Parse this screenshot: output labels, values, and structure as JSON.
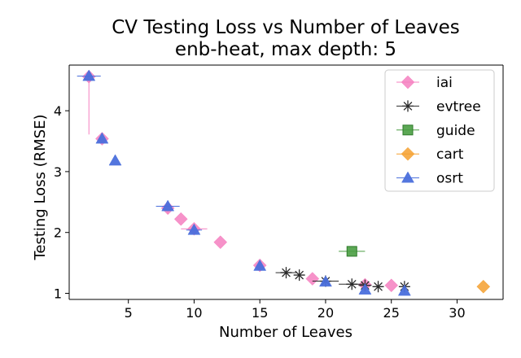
{
  "chart_data": {
    "type": "scatter",
    "title": "CV Testing Loss vs Number of Leaves",
    "subtitle": "enb-heat, max depth: 5",
    "xlabel": "Number of Leaves",
    "ylabel": "Testing Loss (RMSE)",
    "xlim": [
      0.5,
      33.5
    ],
    "ylim": [
      0.9,
      4.75
    ],
    "xticks": [
      5,
      10,
      15,
      20,
      25,
      30
    ],
    "yticks": [
      1,
      2,
      3,
      4
    ],
    "grid": false,
    "legend_position": "top-right",
    "series": [
      {
        "name": "iai",
        "color": "#f57fbf",
        "marker": "diamond",
        "points": [
          {
            "x": 2,
            "y": 4.56,
            "xerr": 0,
            "yerr_low": 0.95,
            "yerr_high": 0
          },
          {
            "x": 3,
            "y": 3.54,
            "xerr": 0,
            "yerr_low": 0,
            "yerr_high": 0
          },
          {
            "x": 8,
            "y": 2.4,
            "xerr": 0.4,
            "yerr_low": 0.1,
            "yerr_high": 0.1
          },
          {
            "x": 9,
            "y": 2.22,
            "xerr": 0,
            "yerr_low": 0,
            "yerr_high": 0
          },
          {
            "x": 10,
            "y": 2.06,
            "xerr": 1,
            "yerr_low": 0,
            "yerr_high": 0
          },
          {
            "x": 12,
            "y": 1.84,
            "xerr": 0,
            "yerr_low": 0,
            "yerr_high": 0
          },
          {
            "x": 15,
            "y": 1.46,
            "xerr": 0,
            "yerr_low": 0,
            "yerr_high": 0
          },
          {
            "x": 19,
            "y": 1.24,
            "xerr": 0,
            "yerr_low": 0,
            "yerr_high": 0
          },
          {
            "x": 23,
            "y": 1.14,
            "xerr": 0,
            "yerr_low": 0,
            "yerr_high": 0
          },
          {
            "x": 25,
            "y": 1.13,
            "xerr": 0,
            "yerr_low": 0,
            "yerr_high": 0
          }
        ]
      },
      {
        "name": "evtree",
        "color": "#2b2b2b",
        "marker": "star",
        "points": [
          {
            "x": 17,
            "y": 1.34,
            "xerr": 0.8,
            "yerr_low": 0,
            "yerr_high": 0
          },
          {
            "x": 18,
            "y": 1.3,
            "xerr": 0,
            "yerr_low": 0,
            "yerr_high": 0
          },
          {
            "x": 20,
            "y": 1.2,
            "xerr": 1,
            "yerr_low": 0,
            "yerr_high": 0
          },
          {
            "x": 22,
            "y": 1.15,
            "xerr": 1,
            "yerr_low": 0,
            "yerr_high": 0
          },
          {
            "x": 23,
            "y": 1.13,
            "xerr": 0.5,
            "yerr_low": 0,
            "yerr_high": 0
          },
          {
            "x": 24,
            "y": 1.11,
            "xerr": 0,
            "yerr_low": 0,
            "yerr_high": 0
          },
          {
            "x": 26,
            "y": 1.11,
            "xerr": 0,
            "yerr_low": 0,
            "yerr_high": 0
          }
        ]
      },
      {
        "name": "guide",
        "color": "#4a9e42",
        "marker": "square",
        "points": [
          {
            "x": 22,
            "y": 1.69,
            "xerr": 1,
            "yerr_low": 0,
            "yerr_high": 0
          }
        ]
      },
      {
        "name": "cart",
        "color": "#f5a02f",
        "marker": "diamond",
        "points": [
          {
            "x": 32,
            "y": 1.11,
            "xerr": 0,
            "yerr_low": 0,
            "yerr_high": 0
          }
        ]
      },
      {
        "name": "osrt",
        "color": "#4a6fdc",
        "marker": "triangle",
        "points": [
          {
            "x": 2,
            "y": 4.57,
            "xerr": 0.9,
            "yerr_low": 0,
            "yerr_high": 0
          },
          {
            "x": 3,
            "y": 3.54,
            "xerr": 0,
            "yerr_low": 0,
            "yerr_high": 0
          },
          {
            "x": 4,
            "y": 3.18,
            "xerr": 0,
            "yerr_low": 0,
            "yerr_high": 0
          },
          {
            "x": 8,
            "y": 2.43,
            "xerr": 0.9,
            "yerr_low": 0,
            "yerr_high": 0
          },
          {
            "x": 10,
            "y": 2.04,
            "xerr": 0.6,
            "yerr_low": 0,
            "yerr_high": 0
          },
          {
            "x": 15,
            "y": 1.45,
            "xerr": 0,
            "yerr_low": 0,
            "yerr_high": 0
          },
          {
            "x": 20,
            "y": 1.19,
            "xerr": 0,
            "yerr_low": 0,
            "yerr_high": 0
          },
          {
            "x": 23,
            "y": 1.06,
            "xerr": 0,
            "yerr_low": 0,
            "yerr_high": 0
          },
          {
            "x": 26,
            "y": 1.04,
            "xerr": 0,
            "yerr_low": 0,
            "yerr_high": 0
          }
        ]
      }
    ]
  }
}
